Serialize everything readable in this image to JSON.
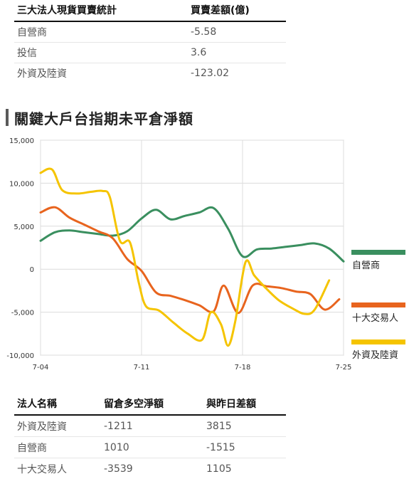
{
  "spot_table": {
    "headers": [
      "三大法人現貨買賣統計",
      "買賣差額(億)"
    ],
    "rows": [
      {
        "name": "自營商",
        "value": "-5.58"
      },
      {
        "name": "投信",
        "value": "3.6"
      },
      {
        "name": "外資及陸資",
        "value": "-123.02"
      }
    ]
  },
  "section_title": "關鍵大戶台指期未平倉淨額",
  "chart_data": {
    "type": "line",
    "x_ticks": [
      "7-04",
      "7-11",
      "7-18",
      "7-25"
    ],
    "y_ticks": [
      "15,000",
      "10,000",
      "5,000",
      "0",
      "-5,000",
      "-10,000"
    ],
    "ylim": [
      -10000,
      15000
    ],
    "grid": true,
    "legend_position": "right",
    "series": [
      {
        "name": "自營商",
        "color": "#3a8f5f",
        "points": [
          [
            0,
            3300
          ],
          [
            1,
            4300
          ],
          [
            2,
            4500
          ],
          [
            3,
            4300
          ],
          [
            4,
            4100
          ],
          [
            5,
            3900
          ],
          [
            6,
            4400
          ],
          [
            7,
            5900
          ],
          [
            8,
            6900
          ],
          [
            9,
            5800
          ],
          [
            10,
            6200
          ],
          [
            11,
            6600
          ],
          [
            12,
            7100
          ],
          [
            13,
            4700
          ],
          [
            14,
            1500
          ],
          [
            15,
            2300
          ],
          [
            16,
            2400
          ],
          [
            17,
            2600
          ],
          [
            18,
            2800
          ],
          [
            19,
            3000
          ],
          [
            20,
            2400
          ],
          [
            21,
            900
          ]
        ]
      },
      {
        "name": "十大交易人",
        "color": "#e8641e",
        "points": [
          [
            0,
            6600
          ],
          [
            1,
            7200
          ],
          [
            2,
            6000
          ],
          [
            3,
            5200
          ],
          [
            4,
            4400
          ],
          [
            5,
            3600
          ],
          [
            6,
            1200
          ],
          [
            7,
            -200
          ],
          [
            8,
            -2700
          ],
          [
            9,
            -3100
          ],
          [
            10,
            -3600
          ],
          [
            11,
            -4200
          ],
          [
            12,
            -4900
          ],
          [
            12.7,
            -1900
          ],
          [
            13.7,
            -5100
          ],
          [
            14.7,
            -1900
          ],
          [
            15.7,
            -2000
          ],
          [
            16.7,
            -2200
          ],
          [
            17.7,
            -2600
          ],
          [
            18.7,
            -2900
          ],
          [
            19.7,
            -4700
          ],
          [
            20.7,
            -3500
          ]
        ]
      },
      {
        "name": "外資及陸資",
        "color": "#f5c400",
        "points": [
          [
            0,
            11200
          ],
          [
            0.8,
            11600
          ],
          [
            1.5,
            9200
          ],
          [
            2.5,
            8800
          ],
          [
            3.5,
            9000
          ],
          [
            4.3,
            9100
          ],
          [
            4.8,
            8400
          ],
          [
            5.5,
            3300
          ],
          [
            6.2,
            3100
          ],
          [
            6.8,
            -1500
          ],
          [
            7.3,
            -4300
          ],
          [
            8.2,
            -4800
          ],
          [
            9.2,
            -6200
          ],
          [
            10.2,
            -7500
          ],
          [
            11.2,
            -8200
          ],
          [
            11.8,
            -5000
          ],
          [
            12.5,
            -6400
          ],
          [
            13,
            -8900
          ],
          [
            13.5,
            -6000
          ],
          [
            14.2,
            800
          ],
          [
            14.8,
            -700
          ],
          [
            15.5,
            -2000
          ],
          [
            16.5,
            -3600
          ],
          [
            17.5,
            -4600
          ],
          [
            18.3,
            -5200
          ],
          [
            19,
            -4700
          ],
          [
            20,
            -1300
          ]
        ]
      }
    ]
  }
}
